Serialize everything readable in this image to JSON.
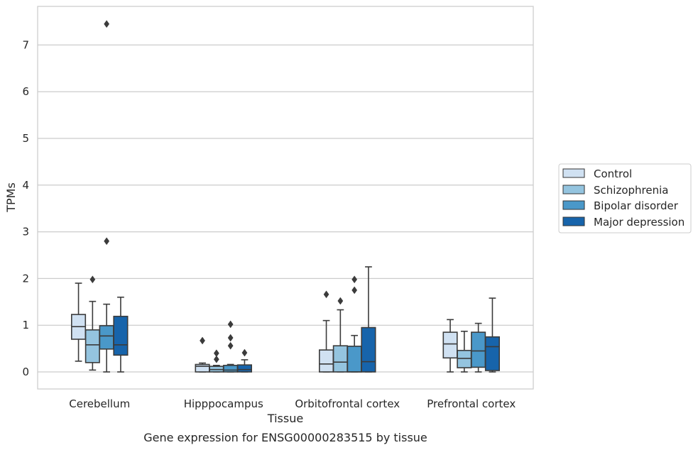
{
  "chart_data": {
    "type": "box",
    "title": "",
    "caption": "Gene expression for ENSG00000283515 by tissue",
    "xlabel": "Tissue",
    "ylabel": "TPMs",
    "ylim": [
      -0.35,
      7.8
    ],
    "yticks": [
      0,
      1,
      2,
      3,
      4,
      5,
      6,
      7
    ],
    "grid": "horizontal",
    "legend_position": "right",
    "categories": [
      "Cerebellum",
      "Hipppocampus",
      "Orbitofrontal cortex",
      "Prefrontal cortex"
    ],
    "series": [
      {
        "name": "Control",
        "color": "#d0e1f2",
        "boxes": [
          {
            "whislo": 0.23,
            "q1": 0.7,
            "med": 0.97,
            "q3": 1.23,
            "whishi": 1.9,
            "fliers": []
          },
          {
            "whislo": 0.0,
            "q1": 0.0,
            "med": 0.12,
            "q3": 0.16,
            "whishi": 0.19,
            "fliers": [
              0.67
            ]
          },
          {
            "whislo": 0.0,
            "q1": 0.0,
            "med": 0.17,
            "q3": 0.47,
            "whishi": 1.1,
            "fliers": [
              1.66
            ]
          },
          {
            "whislo": 0.0,
            "q1": 0.3,
            "med": 0.6,
            "q3": 0.85,
            "whishi": 1.12,
            "fliers": []
          }
        ]
      },
      {
        "name": "Schizophrenia",
        "color": "#94c4df",
        "boxes": [
          {
            "whislo": 0.04,
            "q1": 0.2,
            "med": 0.58,
            "q3": 0.9,
            "whishi": 1.51,
            "fliers": [
              1.98
            ]
          },
          {
            "whislo": 0.0,
            "q1": 0.0,
            "med": 0.05,
            "q3": 0.12,
            "whishi": 0.14,
            "fliers": [
              0.27,
              0.4
            ]
          },
          {
            "whislo": 0.0,
            "q1": 0.0,
            "med": 0.21,
            "q3": 0.56,
            "whishi": 1.33,
            "fliers": [
              1.52
            ]
          },
          {
            "whislo": 0.0,
            "q1": 0.09,
            "med": 0.29,
            "q3": 0.46,
            "whishi": 0.87,
            "fliers": []
          }
        ]
      },
      {
        "name": "Bipolar disorder",
        "color": "#4a98c9",
        "boxes": [
          {
            "whislo": 0.0,
            "q1": 0.49,
            "med": 0.77,
            "q3": 0.99,
            "whishi": 1.45,
            "fliers": [
              2.8,
              7.45
            ]
          },
          {
            "whislo": 0.0,
            "q1": 0.0,
            "med": 0.04,
            "q3": 0.14,
            "whishi": 0.16,
            "fliers": [
              0.56,
              0.73,
              1.02
            ]
          },
          {
            "whislo": 0.0,
            "q1": 0.0,
            "med": 0.0,
            "q3": 0.55,
            "whishi": 0.78,
            "fliers": [
              1.75,
              1.98
            ]
          },
          {
            "whislo": 0.0,
            "q1": 0.1,
            "med": 0.45,
            "q3": 0.85,
            "whishi": 1.04,
            "fliers": []
          }
        ]
      },
      {
        "name": "Major depression",
        "color": "#1764ab",
        "boxes": [
          {
            "whislo": 0.0,
            "q1": 0.36,
            "med": 0.58,
            "q3": 1.19,
            "whishi": 1.6,
            "fliers": []
          },
          {
            "whislo": 0.0,
            "q1": 0.0,
            "med": 0.05,
            "q3": 0.15,
            "whishi": 0.26,
            "fliers": [
              0.41
            ]
          },
          {
            "whislo": 0.0,
            "q1": 0.0,
            "med": 0.22,
            "q3": 0.95,
            "whishi": 2.25,
            "fliers": []
          },
          {
            "whislo": 0.0,
            "q1": 0.03,
            "med": 0.54,
            "q3": 0.75,
            "whishi": 1.58,
            "fliers": []
          }
        ]
      }
    ]
  }
}
